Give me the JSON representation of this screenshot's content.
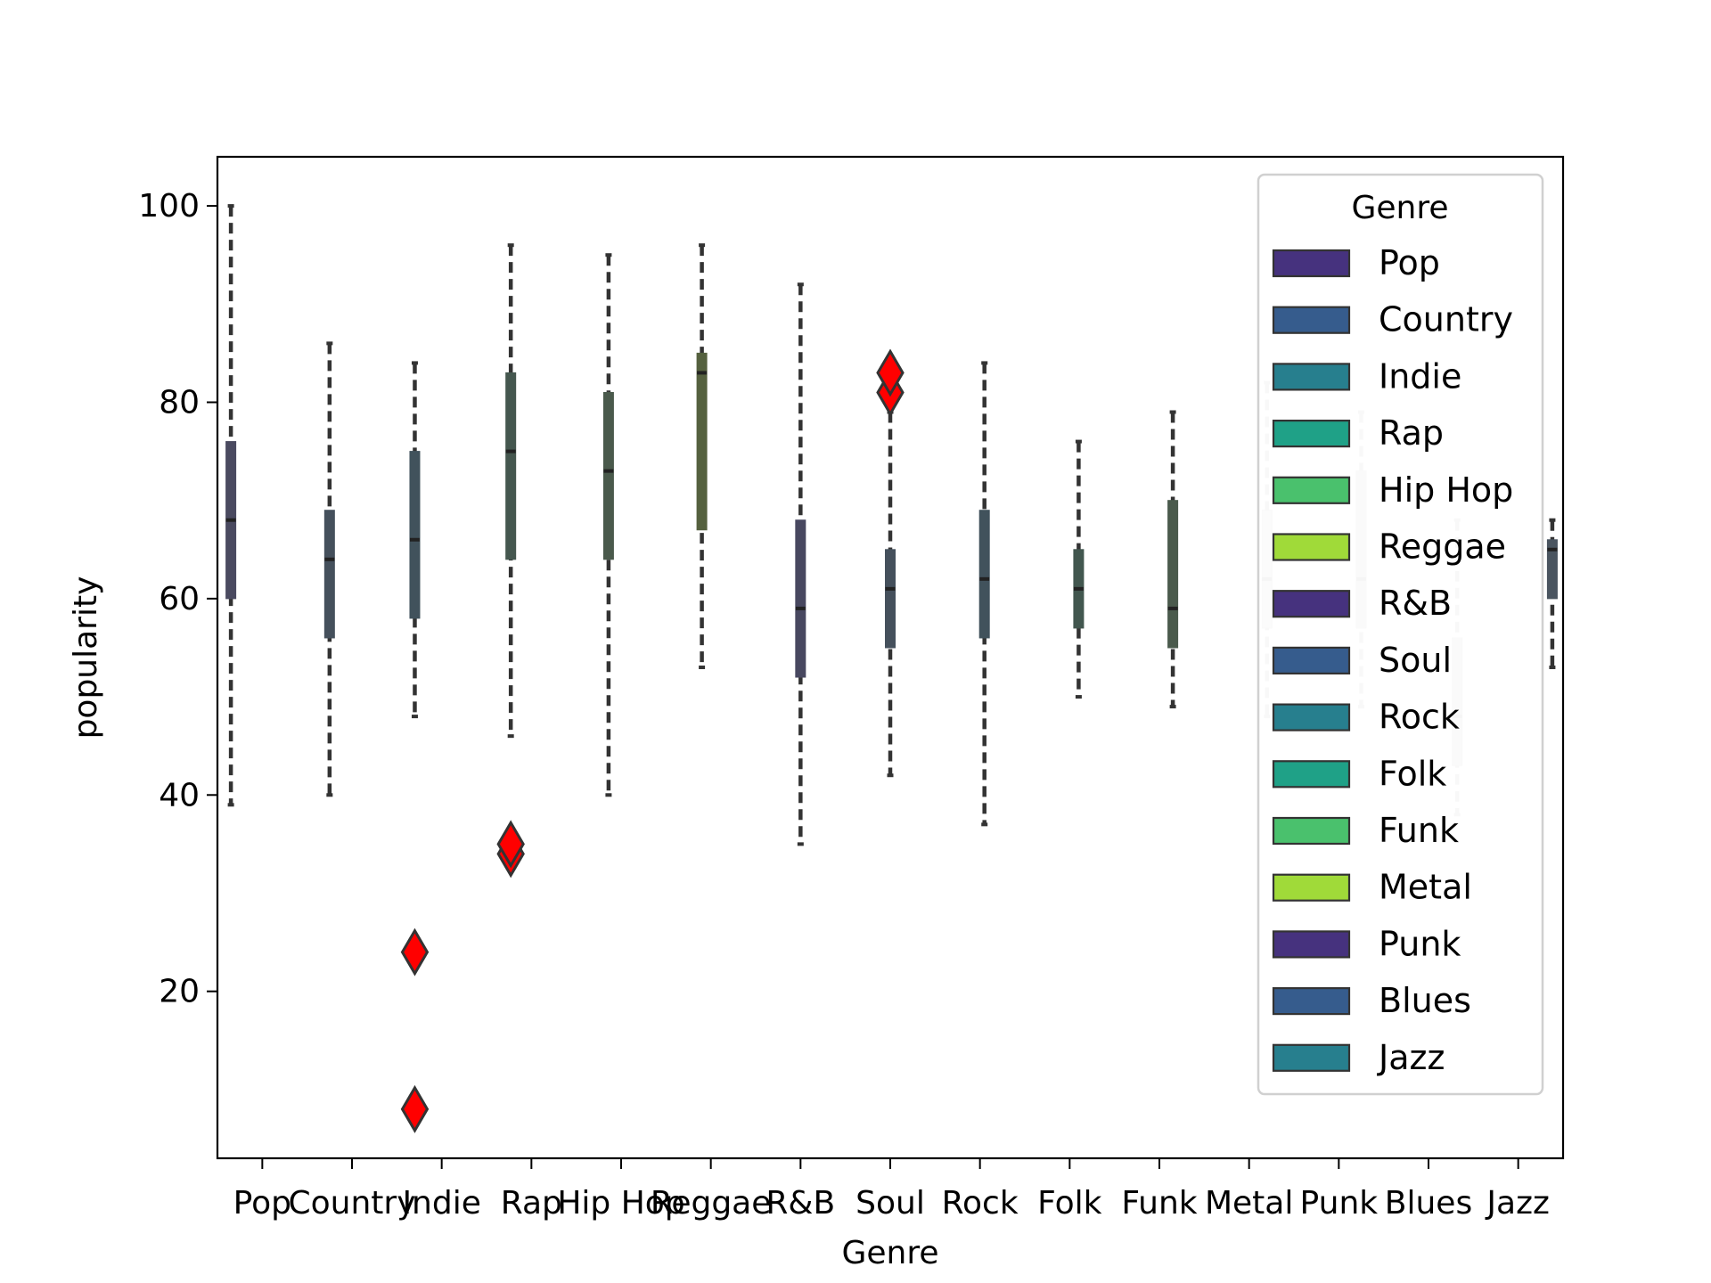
{
  "chart_data": {
    "type": "box",
    "xlabel": "Genre",
    "ylabel": "popularity",
    "ylim": [
      3,
      105
    ],
    "yticks": [
      20,
      40,
      60,
      80,
      100
    ],
    "categories": [
      "Pop",
      "Country",
      "Indie",
      "Rap",
      "Hip Hop",
      "Reggae",
      "R&B",
      "Soul",
      "Rock",
      "Folk",
      "Funk",
      "Metal",
      "Punk",
      "Blues",
      "Jazz"
    ],
    "series": [
      {
        "category": "Pop",
        "whisker_low": 39,
        "q1": 60,
        "median": 68,
        "q3": 76,
        "whisker_high": 100,
        "outliers": [],
        "color": "#4a4a60",
        "position_offset": -0.35
      },
      {
        "category": "Country",
        "whisker_low": 40,
        "q1": 56,
        "median": 64,
        "q3": 69,
        "whisker_high": 86,
        "outliers": [],
        "color": "#45505c",
        "position_offset": -0.25
      },
      {
        "category": "Indie",
        "whisker_low": 48,
        "q1": 58,
        "median": 66,
        "q3": 75,
        "whisker_high": 84,
        "outliers": [
          8,
          24
        ],
        "color": "#41525c",
        "position_offset": -0.3
      },
      {
        "category": "Rap",
        "whisker_low": 46,
        "q1": 64,
        "median": 75,
        "q3": 83,
        "whisker_high": 96,
        "outliers": [
          34,
          35
        ],
        "color": "#45574f",
        "position_offset": -0.23
      },
      {
        "category": "Hip Hop",
        "whisker_low": 40,
        "q1": 64,
        "median": 73,
        "q3": 81,
        "whisker_high": 95,
        "outliers": [],
        "color": "#4a5a4c",
        "position_offset": -0.14
      },
      {
        "category": "Reggae",
        "whisker_low": 53,
        "q1": 67,
        "median": 83,
        "q3": 85,
        "whisker_high": 96,
        "outliers": [],
        "color": "#55613f",
        "position_offset": -0.1
      },
      {
        "category": "R&B",
        "whisker_low": 35,
        "q1": 52,
        "median": 59,
        "q3": 68,
        "whisker_high": 92,
        "outliers": [],
        "color": "#484860",
        "position_offset": 0.0
      },
      {
        "category": "Soul",
        "whisker_low": 42,
        "q1": 55,
        "median": 61,
        "q3": 65,
        "whisker_high": 79,
        "outliers": [
          81,
          83
        ],
        "color": "#45505c",
        "position_offset": 0.0
      },
      {
        "category": "Rock",
        "whisker_low": 37,
        "q1": 56,
        "median": 62,
        "q3": 69,
        "whisker_high": 84,
        "outliers": [],
        "color": "#41525c",
        "position_offset": 0.05
      },
      {
        "category": "Folk",
        "whisker_low": 50,
        "q1": 57,
        "median": 61,
        "q3": 65,
        "whisker_high": 76,
        "outliers": [],
        "color": "#42574f",
        "position_offset": 0.1
      },
      {
        "category": "Funk",
        "whisker_low": 49,
        "q1": 55,
        "median": 59,
        "q3": 70,
        "whisker_high": 79,
        "outliers": [],
        "color": "#4a5a4c",
        "position_offset": 0.15
      },
      {
        "category": "Metal",
        "whisker_low": 48,
        "q1": 57,
        "median": 62,
        "q3": 69,
        "whisker_high": 82,
        "outliers": [],
        "color": "#e8e8e8",
        "position_offset": 0.2
      },
      {
        "category": "Punk",
        "whisker_low": 49,
        "q1": 57,
        "median": 62,
        "q3": 73,
        "whisker_high": 79,
        "outliers": [],
        "color": "#e6e6e6",
        "position_offset": 0.25
      },
      {
        "category": "Blues",
        "whisker_low": 38,
        "q1": 43,
        "median": 48,
        "q3": 56,
        "whisker_high": 68,
        "outliers": [],
        "color": "#e4e4e4",
        "position_offset": 0.32
      },
      {
        "category": "Jazz",
        "whisker_low": 53,
        "q1": 60,
        "median": 65,
        "q3": 66,
        "whisker_high": 68,
        "outliers": [],
        "color": "#4a5560",
        "position_offset": 0.38
      }
    ],
    "legend": {
      "title": "Genre",
      "placement": "upper right",
      "entries": [
        {
          "label": "Pop",
          "color": "#46327e"
        },
        {
          "label": "Country",
          "color": "#365c8d"
        },
        {
          "label": "Indie",
          "color": "#277f8e"
        },
        {
          "label": "Rap",
          "color": "#1fa187"
        },
        {
          "label": "Hip Hop",
          "color": "#4ac16d"
        },
        {
          "label": "Reggae",
          "color": "#a0da39"
        },
        {
          "label": "R&B",
          "color": "#46327e"
        },
        {
          "label": "Soul",
          "color": "#365c8d"
        },
        {
          "label": "Rock",
          "color": "#277f8e"
        },
        {
          "label": "Folk",
          "color": "#1fa187"
        },
        {
          "label": "Funk",
          "color": "#4ac16d"
        },
        {
          "label": "Metal",
          "color": "#a0da39"
        },
        {
          "label": "Punk",
          "color": "#46327e"
        },
        {
          "label": "Blues",
          "color": "#365c8d"
        },
        {
          "label": "Jazz",
          "color": "#277f8e"
        }
      ]
    },
    "outlier_color": "#ff0000",
    "grid": false
  }
}
